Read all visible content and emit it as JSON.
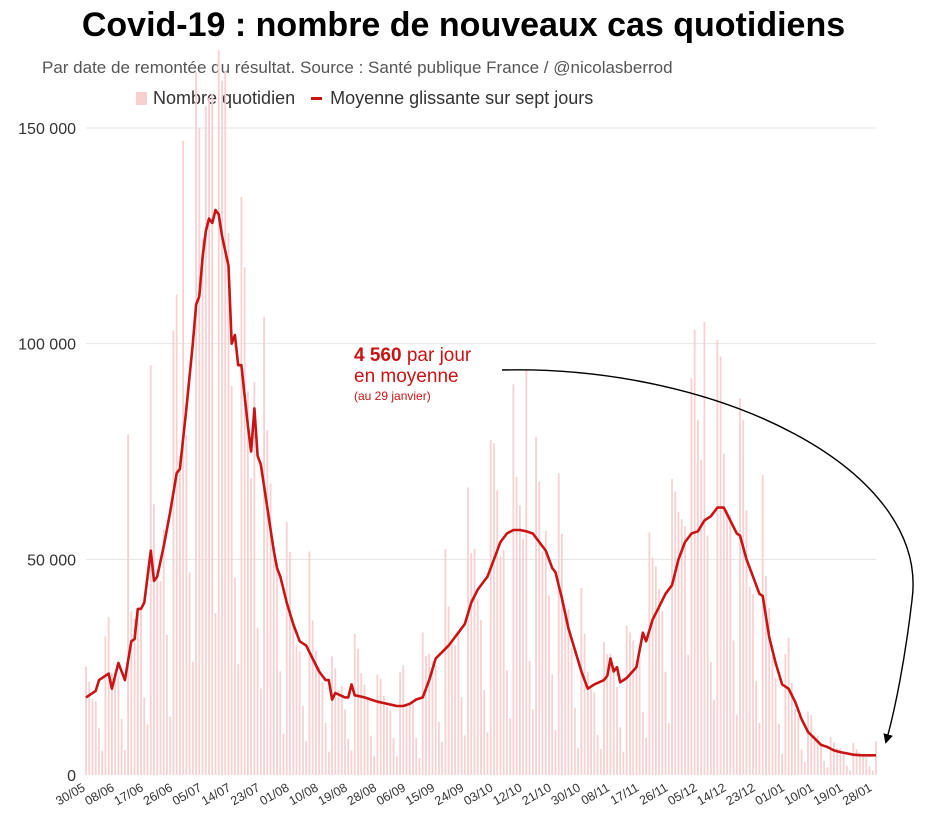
{
  "header": {
    "title": "Covid-19 : nombre de nouveaux cas quotidiens",
    "subtitle": "Par date de remontée du résultat. Source : Santé publique France / @nicolasberrod"
  },
  "legend": {
    "bars_label": "Nombre quotidien",
    "line_label": "Moyenne glissante sur sept jours"
  },
  "annotation": {
    "value": "4 560",
    "line1_rest": " par jour",
    "line2": "en moyenne",
    "line3": "(au 29 janvier)"
  },
  "colors": {
    "bar": "#f7d0d0",
    "line": "#c81414",
    "grid": "#e4e4e4",
    "axis_text": "#333333"
  },
  "chart_data": {
    "type": "bar",
    "title": "Covid-19 : nombre de nouveaux cas quotidiens",
    "xlabel": "",
    "ylabel": "",
    "ylim": [
      0,
      150000
    ],
    "yticks": [
      0,
      50000,
      100000,
      150000
    ],
    "ytick_labels": [
      "0",
      "50 000",
      "100 000",
      "150 000"
    ],
    "xtick_labels": [
      "30/05",
      "08/06",
      "17/06",
      "26/06",
      "05/07",
      "14/07",
      "23/07",
      "01/08",
      "10/08",
      "19/08",
      "28/08",
      "06/09",
      "15/09",
      "24/09",
      "03/10",
      "12/10",
      "21/10",
      "30/10",
      "08/11",
      "17/11",
      "26/11",
      "05/12",
      "14/12",
      "23/12",
      "01/01",
      "10/01",
      "19/01",
      "28/01"
    ],
    "xtick_days": [
      0,
      9,
      18,
      27,
      36,
      45,
      54,
      63,
      72,
      81,
      90,
      99,
      108,
      117,
      126,
      135,
      144,
      153,
      162,
      171,
      180,
      189,
      198,
      207,
      216,
      225,
      234,
      243
    ],
    "n_days": 245,
    "series": [
      {
        "name": "Moyenne glissante sur sept jours",
        "kind": "line",
        "points": [
          [
            0,
            18000
          ],
          [
            3,
            19500
          ],
          [
            4,
            22000
          ],
          [
            7,
            23500
          ],
          [
            8,
            20000
          ],
          [
            10,
            26000
          ],
          [
            12,
            22000
          ],
          [
            14,
            31000
          ],
          [
            15,
            31500
          ],
          [
            16,
            38500
          ],
          [
            17,
            38500
          ],
          [
            18,
            40000
          ],
          [
            20,
            52000
          ],
          [
            21,
            45000
          ],
          [
            22,
            46000
          ],
          [
            24,
            53000
          ],
          [
            26,
            61000
          ],
          [
            28,
            70000
          ],
          [
            29,
            71000
          ],
          [
            31,
            85000
          ],
          [
            33,
            100000
          ],
          [
            34,
            109000
          ],
          [
            35,
            111000
          ],
          [
            36,
            120000
          ],
          [
            37,
            126000
          ],
          [
            38,
            129000
          ],
          [
            39,
            128000
          ],
          [
            40,
            131000
          ],
          [
            41,
            130000
          ],
          [
            42,
            125000
          ],
          [
            44,
            118000
          ],
          [
            45,
            100000
          ],
          [
            46,
            102000
          ],
          [
            47,
            95000
          ],
          [
            48,
            95000
          ],
          [
            49,
            88000
          ],
          [
            50,
            81000
          ],
          [
            51,
            75000
          ],
          [
            52,
            85000
          ],
          [
            53,
            74000
          ],
          [
            54,
            72000
          ],
          [
            56,
            62000
          ],
          [
            57,
            57000
          ],
          [
            58,
            52000
          ],
          [
            59,
            48000
          ],
          [
            60,
            46000
          ],
          [
            62,
            40000
          ],
          [
            64,
            35000
          ],
          [
            66,
            31000
          ],
          [
            68,
            30000
          ],
          [
            70,
            27000
          ],
          [
            72,
            24000
          ],
          [
            74,
            22000
          ],
          [
            75,
            22000
          ],
          [
            76,
            17500
          ],
          [
            77,
            19000
          ],
          [
            80,
            18000
          ],
          [
            81,
            18000
          ],
          [
            82,
            21000
          ],
          [
            83,
            18500
          ],
          [
            86,
            18000
          ],
          [
            90,
            17000
          ],
          [
            93,
            16500
          ],
          [
            96,
            16000
          ],
          [
            98,
            16000
          ],
          [
            100,
            16500
          ],
          [
            102,
            17500
          ],
          [
            104,
            18000
          ],
          [
            106,
            22000
          ],
          [
            108,
            27000
          ],
          [
            110,
            28500
          ],
          [
            112,
            30000
          ],
          [
            114,
            32000
          ],
          [
            116,
            34000
          ],
          [
            117,
            35000
          ],
          [
            119,
            40000
          ],
          [
            121,
            43000
          ],
          [
            123,
            45000
          ],
          [
            124,
            46000
          ],
          [
            126,
            50000
          ],
          [
            128,
            54000
          ],
          [
            130,
            56000
          ],
          [
            132,
            56800
          ],
          [
            134,
            56800
          ],
          [
            136,
            56500
          ],
          [
            138,
            56000
          ],
          [
            140,
            54000
          ],
          [
            142,
            52000
          ],
          [
            144,
            48000
          ],
          [
            145,
            47000
          ],
          [
            147,
            41000
          ],
          [
            149,
            34000
          ],
          [
            151,
            29000
          ],
          [
            153,
            24000
          ],
          [
            155,
            20000
          ],
          [
            157,
            21000
          ],
          [
            160,
            22000
          ],
          [
            161,
            23000
          ],
          [
            162,
            27000
          ],
          [
            163,
            24000
          ],
          [
            164,
            25000
          ],
          [
            165,
            21500
          ],
          [
            167,
            22500
          ],
          [
            170,
            25000
          ],
          [
            172,
            33000
          ],
          [
            173,
            31000
          ],
          [
            175,
            36000
          ],
          [
            177,
            39000
          ],
          [
            179,
            42000
          ],
          [
            181,
            44000
          ],
          [
            183,
            50000
          ],
          [
            185,
            54000
          ],
          [
            187,
            56000
          ],
          [
            189,
            56500
          ],
          [
            191,
            59000
          ],
          [
            193,
            60000
          ],
          [
            195,
            62000
          ],
          [
            197,
            62000
          ],
          [
            199,
            59000
          ],
          [
            201,
            56000
          ],
          [
            202,
            55500
          ],
          [
            204,
            50000
          ],
          [
            206,
            46000
          ],
          [
            208,
            42000
          ],
          [
            209,
            41500
          ],
          [
            211,
            32000
          ],
          [
            213,
            26000
          ],
          [
            215,
            21000
          ],
          [
            217,
            20000
          ],
          [
            219,
            17000
          ],
          [
            221,
            13000
          ],
          [
            223,
            10000
          ],
          [
            225,
            8500
          ],
          [
            227,
            7000
          ],
          [
            229,
            6500
          ],
          [
            231,
            5700
          ],
          [
            233,
            5300
          ],
          [
            235,
            5000
          ],
          [
            237,
            4700
          ],
          [
            239,
            4600
          ],
          [
            241,
            4560
          ],
          [
            244,
            4560
          ]
        ]
      },
      {
        "name": "Nombre quotidien",
        "kind": "bar",
        "note": "daily values scatter around the 7-day average with weekday peaks and weekend troughs; notable peaks",
        "peaks": [
          [
            30,
            147000
          ],
          [
            35,
            150000
          ],
          [
            37,
            155000
          ],
          [
            38,
            157000
          ],
          [
            39,
            158000
          ],
          [
            43,
            163000
          ],
          [
            48,
            134000
          ],
          [
            13,
            79000
          ],
          [
            20,
            95000
          ],
          [
            136,
            94000
          ],
          [
            187,
            92000
          ],
          [
            191,
            105000
          ],
          [
            196,
            97000
          ]
        ]
      }
    ]
  }
}
